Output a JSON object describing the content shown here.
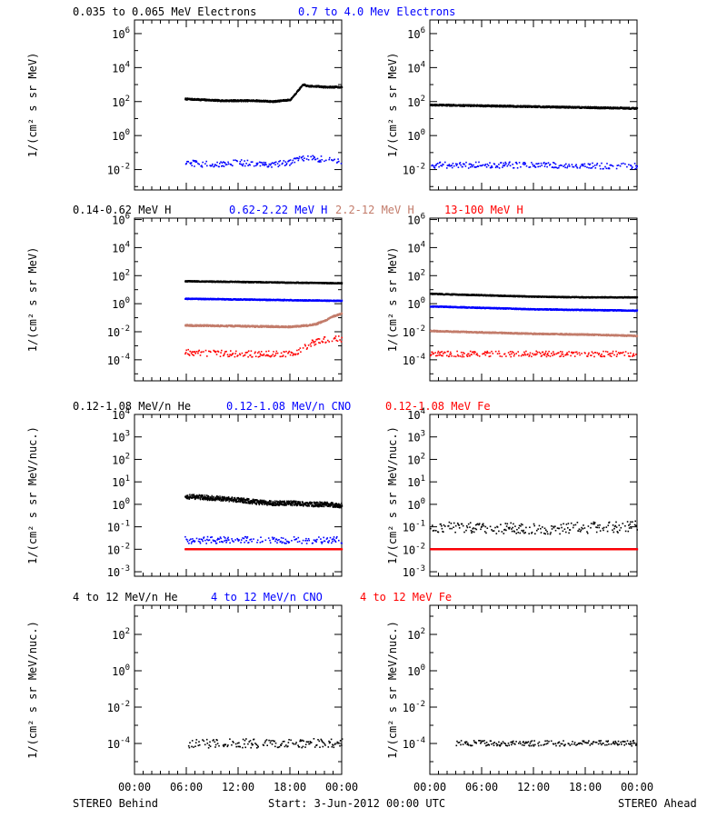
{
  "colors": {
    "black": "#000000",
    "blue": "#0000ff",
    "tan": "#c37c6b",
    "red": "#ff0000"
  },
  "footer": {
    "left": "STEREO Behind",
    "center": "Start:  3-Jun-2012 00:00 UTC",
    "right": "STEREO Ahead"
  },
  "chart_data": [
    {
      "type": "scatter",
      "panel": "row1-left",
      "titles": [
        {
          "text": "0.035 to 0.065 MeV Electrons",
          "color": "#000000"
        },
        {
          "text": "0.7 to 4.0 Mev Electrons",
          "color": "#0000ff"
        }
      ],
      "ylabel": "1/(cm² s sr MeV)",
      "yscale": "log",
      "ylim_exp": [
        -3.2,
        6.8
      ],
      "yticks": [
        {
          "exp": 6,
          "label": "10",
          "sup": "6"
        },
        {
          "exp": 4,
          "label": "10",
          "sup": "4"
        },
        {
          "exp": 2,
          "label": "10",
          "sup": "2"
        },
        {
          "exp": 0,
          "label": "10",
          "sup": "0"
        },
        {
          "exp": -2,
          "label": "10",
          "sup": "-2"
        }
      ],
      "xlim_hours": [
        0,
        24
      ],
      "series": [
        {
          "color": "#000000",
          "x_hours": [
            5.8,
            8,
            10,
            12,
            14,
            16,
            18,
            18.8,
            19.5,
            20,
            21,
            22,
            23,
            24
          ],
          "log10_y": [
            2.15,
            2.1,
            2.05,
            2.05,
            2.05,
            2.0,
            2.1,
            2.6,
            3.0,
            2.9,
            2.9,
            2.85,
            2.85,
            2.85
          ],
          "scatter": 0.04
        },
        {
          "color": "#0000ff",
          "x_hours": [
            5.8,
            8,
            10,
            12,
            14,
            16,
            18,
            19,
            20,
            21,
            22,
            23,
            24
          ],
          "log10_y": [
            -1.6,
            -1.7,
            -1.7,
            -1.6,
            -1.7,
            -1.7,
            -1.6,
            -1.4,
            -1.3,
            -1.4,
            -1.4,
            -1.4,
            -1.5
          ],
          "scatter": 0.18
        }
      ]
    },
    {
      "type": "scatter",
      "panel": "row1-right",
      "titles": [],
      "ylabel": "1/(cm² s sr MeV)",
      "yscale": "log",
      "ylim_exp": [
        -3.2,
        6.8
      ],
      "yticks": [
        {
          "exp": 6,
          "label": "10",
          "sup": "6"
        },
        {
          "exp": 4,
          "label": "10",
          "sup": "4"
        },
        {
          "exp": 2,
          "label": "10",
          "sup": "2"
        },
        {
          "exp": 0,
          "label": "10",
          "sup": "0"
        },
        {
          "exp": -2,
          "label": "10",
          "sup": "-2"
        }
      ],
      "xlim_hours": [
        0,
        24
      ],
      "series": [
        {
          "color": "#000000",
          "x_hours": [
            0,
            6,
            12,
            18,
            24
          ],
          "log10_y": [
            1.8,
            1.75,
            1.7,
            1.65,
            1.6
          ],
          "scatter": 0.04
        },
        {
          "color": "#0000ff",
          "x_hours": [
            0,
            6,
            12,
            18,
            24
          ],
          "log10_y": [
            -1.75,
            -1.75,
            -1.75,
            -1.8,
            -1.8
          ],
          "scatter": 0.18
        }
      ]
    },
    {
      "type": "scatter",
      "panel": "row2-left",
      "titles": [
        {
          "text": "0.14-0.62 MeV H",
          "color": "#000000"
        },
        {
          "text": "0.62-2.22 MeV H",
          "color": "#0000ff"
        },
        {
          "text": "2.2-12 MeV H",
          "color": "#c37c6b"
        },
        {
          "text": "13-100 MeV H",
          "color": "#ff0000"
        }
      ],
      "ylabel": "1/(cm² s sr MeV)",
      "yscale": "log",
      "ylim_exp": [
        -5.5,
        6.1
      ],
      "yticks": [
        {
          "exp": 6,
          "label": "10",
          "sup": "6"
        },
        {
          "exp": 4,
          "label": "10",
          "sup": "4"
        },
        {
          "exp": 2,
          "label": "10",
          "sup": "2"
        },
        {
          "exp": 0,
          "label": "10",
          "sup": "0"
        },
        {
          "exp": -2,
          "label": "10",
          "sup": "-2"
        },
        {
          "exp": -4,
          "label": "10",
          "sup": "-4"
        }
      ],
      "xlim_hours": [
        0,
        24
      ],
      "series": [
        {
          "color": "#000000",
          "x_hours": [
            5.8,
            12,
            18,
            24
          ],
          "log10_y": [
            1.6,
            1.55,
            1.5,
            1.45
          ],
          "scatter": 0.03
        },
        {
          "color": "#0000ff",
          "x_hours": [
            5.8,
            12,
            18,
            24
          ],
          "log10_y": [
            0.35,
            0.3,
            0.25,
            0.2
          ],
          "scatter": 0.03
        },
        {
          "color": "#c37c6b",
          "x_hours": [
            5.8,
            12,
            18,
            20,
            21,
            22,
            23,
            24
          ],
          "log10_y": [
            -1.55,
            -1.6,
            -1.65,
            -1.55,
            -1.45,
            -1.2,
            -0.9,
            -0.7
          ],
          "scatter": 0.05
        },
        {
          "color": "#ff0000",
          "x_hours": [
            5.8,
            12,
            18.5,
            19.5,
            20.5,
            21.5,
            22.5,
            24
          ],
          "log10_y": [
            -3.5,
            -3.6,
            -3.6,
            -3.2,
            -2.8,
            -2.6,
            -2.55,
            -2.55
          ],
          "scatter": 0.22
        }
      ]
    },
    {
      "type": "scatter",
      "panel": "row2-right",
      "titles": [],
      "ylabel": "1/(cm² s sr MeV)",
      "yscale": "log",
      "ylim_exp": [
        -5.5,
        6.1
      ],
      "yticks": [
        {
          "exp": 6,
          "label": "10",
          "sup": "6"
        },
        {
          "exp": 4,
          "label": "10",
          "sup": "4"
        },
        {
          "exp": 2,
          "label": "10",
          "sup": "2"
        },
        {
          "exp": 0,
          "label": "10",
          "sup": "0"
        },
        {
          "exp": -2,
          "label": "10",
          "sup": "-2"
        },
        {
          "exp": -4,
          "label": "10",
          "sup": "-4"
        }
      ],
      "xlim_hours": [
        0,
        24
      ],
      "series": [
        {
          "color": "#000000",
          "x_hours": [
            0,
            6,
            12,
            18,
            24
          ],
          "log10_y": [
            0.7,
            0.6,
            0.5,
            0.45,
            0.45
          ],
          "scatter": 0.03
        },
        {
          "color": "#0000ff",
          "x_hours": [
            0,
            6,
            12,
            18,
            24
          ],
          "log10_y": [
            -0.2,
            -0.3,
            -0.4,
            -0.45,
            -0.5
          ],
          "scatter": 0.03
        },
        {
          "color": "#c37c6b",
          "x_hours": [
            0,
            6,
            12,
            18,
            24
          ],
          "log10_y": [
            -1.95,
            -2.05,
            -2.15,
            -2.2,
            -2.3
          ],
          "scatter": 0.04
        },
        {
          "color": "#ff0000",
          "x_hours": [
            0,
            6,
            12,
            18,
            24
          ],
          "log10_y": [
            -3.6,
            -3.6,
            -3.6,
            -3.6,
            -3.6
          ],
          "scatter": 0.2
        }
      ]
    },
    {
      "type": "scatter",
      "panel": "row3-left",
      "titles": [
        {
          "text": "0.12-1.08 MeV/n He",
          "color": "#000000"
        },
        {
          "text": "0.12-1.08 MeV/n CNO",
          "color": "#0000ff"
        },
        {
          "text": "0.12-1.08 MeV Fe",
          "color": "#ff0000"
        }
      ],
      "ylabel": "1/(cm² s sr MeV/nuc.)",
      "yscale": "log",
      "ylim_exp": [
        -3.2,
        4.0
      ],
      "yticks": [
        {
          "exp": 4,
          "label": "10",
          "sup": "4"
        },
        {
          "exp": 3,
          "label": "10",
          "sup": "3"
        },
        {
          "exp": 2,
          "label": "10",
          "sup": "2"
        },
        {
          "exp": 1,
          "label": "10",
          "sup": "1"
        },
        {
          "exp": 0,
          "label": "10",
          "sup": "0"
        },
        {
          "exp": -1,
          "label": "10",
          "sup": "-1"
        },
        {
          "exp": -2,
          "label": "10",
          "sup": "-2"
        },
        {
          "exp": -3,
          "label": "10",
          "sup": "-3"
        }
      ],
      "xlim_hours": [
        0,
        24
      ],
      "series": [
        {
          "color": "#000000",
          "x_hours": [
            5.8,
            8,
            10,
            12,
            14,
            16,
            18,
            20,
            22,
            24
          ],
          "log10_y": [
            0.35,
            0.3,
            0.25,
            0.2,
            0.1,
            0.05,
            0.05,
            0.0,
            0.0,
            -0.05
          ],
          "scatter": 0.1
        },
        {
          "color": "#0000ff",
          "x_hours": [
            5.8,
            12,
            18,
            24
          ],
          "log10_y": [
            -1.6,
            -1.6,
            -1.6,
            -1.6
          ],
          "scatter": 0.15
        },
        {
          "color": "#ff0000",
          "x_hours": [
            5.8,
            12,
            18,
            24
          ],
          "log10_y": [
            -2.0,
            -2.0,
            -2.0,
            -2.0
          ],
          "scatter": 0.0
        }
      ]
    },
    {
      "type": "scatter",
      "panel": "row3-right",
      "titles": [],
      "ylabel": "1/(cm² s sr MeV/nuc.)",
      "yscale": "log",
      "ylim_exp": [
        -3.2,
        4.0
      ],
      "yticks": [
        {
          "exp": 4,
          "label": "10",
          "sup": "4"
        },
        {
          "exp": 3,
          "label": "10",
          "sup": "3"
        },
        {
          "exp": 2,
          "label": "10",
          "sup": "2"
        },
        {
          "exp": 1,
          "label": "10",
          "sup": "1"
        },
        {
          "exp": 0,
          "label": "10",
          "sup": "0"
        },
        {
          "exp": -1,
          "label": "10",
          "sup": "-1"
        },
        {
          "exp": -2,
          "label": "10",
          "sup": "-2"
        },
        {
          "exp": -3,
          "label": "10",
          "sup": "-3"
        }
      ],
      "xlim_hours": [
        0,
        24
      ],
      "series": [
        {
          "color": "#000000",
          "x_hours": [
            0,
            6,
            12,
            18,
            24
          ],
          "log10_y": [
            -1.0,
            -1.05,
            -1.1,
            -1.05,
            -1.0
          ],
          "scatter": 0.25
        },
        {
          "color": "#0000ff",
          "x_hours": [
            0,
            12,
            24
          ],
          "log10_y": [
            -2.0,
            -2.0,
            -2.0
          ],
          "scatter": 0.0
        },
        {
          "color": "#ff0000",
          "x_hours": [
            0,
            12,
            24
          ],
          "log10_y": [
            -2.0,
            -2.0,
            -2.0
          ],
          "scatter": 0.0
        }
      ]
    },
    {
      "type": "scatter",
      "panel": "row4-left",
      "titles": [
        {
          "text": "4 to 12 MeV/n He",
          "color": "#000000"
        },
        {
          "text": "4 to 12 MeV/n CNO",
          "color": "#0000ff"
        },
        {
          "text": "4 to 12 MeV Fe",
          "color": "#ff0000"
        }
      ],
      "ylabel": "1/(cm² s sr MeV/nuc.)",
      "yscale": "log",
      "ylim_exp": [
        -5.7,
        3.6
      ],
      "yticks": [
        {
          "exp": 2,
          "label": "10",
          "sup": "2"
        },
        {
          "exp": 0,
          "label": "10",
          "sup": "0"
        },
        {
          "exp": -2,
          "label": "10",
          "sup": "-2"
        },
        {
          "exp": -4,
          "label": "10",
          "sup": "-4"
        }
      ],
      "xlim_hours": [
        0,
        24
      ],
      "xticks": [
        "00:00",
        "06:00",
        "12:00",
        "18:00",
        "00:00"
      ],
      "series": [
        {
          "color": "#000000",
          "x_hours": [
            6.2,
            12,
            18,
            24
          ],
          "log10_y": [
            -4.0,
            -4.0,
            -4.0,
            -4.0
          ],
          "scatter": 0.25
        }
      ]
    },
    {
      "type": "scatter",
      "panel": "row4-right",
      "titles": [],
      "ylabel": "1/(cm² s sr MeV/nuc.)",
      "yscale": "log",
      "ylim_exp": [
        -5.7,
        3.6
      ],
      "yticks": [
        {
          "exp": 2,
          "label": "10",
          "sup": "2"
        },
        {
          "exp": 0,
          "label": "10",
          "sup": "0"
        },
        {
          "exp": -2,
          "label": "10",
          "sup": "-2"
        },
        {
          "exp": -4,
          "label": "10",
          "sup": "-4"
        }
      ],
      "xlim_hours": [
        0,
        24
      ],
      "xticks": [
        "00:00",
        "06:00",
        "12:00",
        "18:00",
        "00:00"
      ],
      "series": [
        {
          "color": "#000000",
          "x_hours": [
            3,
            24
          ],
          "log10_y": [
            -4.0,
            -4.0
          ],
          "scatter": 0.15
        }
      ]
    }
  ]
}
